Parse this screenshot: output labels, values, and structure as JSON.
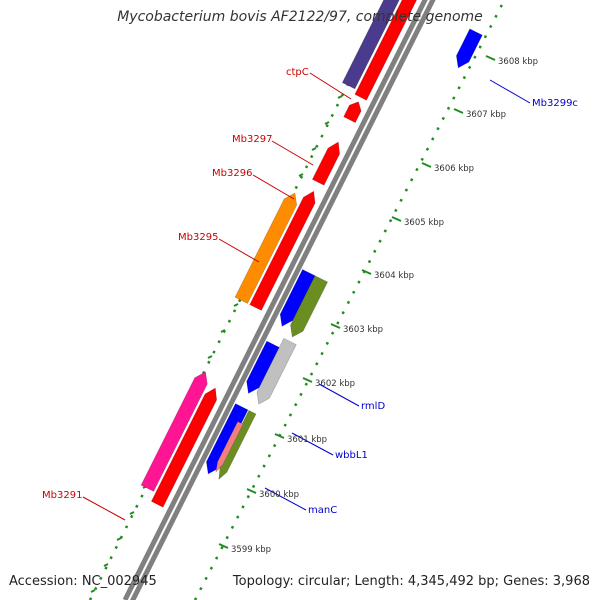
{
  "title": "Mycobacterium bovis AF2122/97, complete genome",
  "footer": {
    "accession": "Accession: NC_002945",
    "topology": "Topology: circular; Length: 4,345,492 bp; Genes: 3,968"
  },
  "ticks": [
    "3599 kbp",
    "3600 kbp",
    "3601 kbp",
    "3602 kbp",
    "3603 kbp",
    "3604 kbp",
    "3605 kbp",
    "3606 kbp",
    "3607 kbp",
    "3608 kbp"
  ],
  "features": [
    {
      "id": "ctpC",
      "label": "ctpC",
      "strand": "forward",
      "color": "#4b3b8c"
    },
    {
      "id": "mb3297",
      "label": "Mb3297",
      "strand": "forward",
      "color": "#ff0000"
    },
    {
      "id": "mb3296",
      "label": "Mb3296",
      "strand": "forward",
      "color": "#ff0000"
    },
    {
      "id": "mb3295",
      "label": "Mb3295",
      "strand": "forward",
      "color": "#ff8c00"
    },
    {
      "id": "mb3291",
      "label": "Mb3291",
      "strand": "forward",
      "color": "#ff1493"
    },
    {
      "id": "mb3299c",
      "label": "Mb3299c",
      "strand": "reverse",
      "color": "#0000ff"
    },
    {
      "id": "rmlD",
      "label": "rmlD",
      "strand": "reverse",
      "color": "#6b8e23"
    },
    {
      "id": "wbbL1",
      "label": "wbbL1",
      "strand": "reverse",
      "color": "#c0c0c0"
    },
    {
      "id": "manC",
      "label": "manC",
      "strand": "reverse",
      "color": "#6b8e23"
    }
  ],
  "colors": {
    "forward_label": "#cc0000",
    "reverse_label": "#0000cc",
    "backbone": "#808080",
    "tick": "#228b22",
    "purple": "#4b3b8c",
    "red": "#ff0000",
    "orange": "#ff8c00",
    "magenta": "#ff1493",
    "blue": "#0000ff",
    "olive": "#6b8e23",
    "grey": "#c0c0c0",
    "salmon": "#f08080",
    "cyan": "#00e5e5"
  }
}
